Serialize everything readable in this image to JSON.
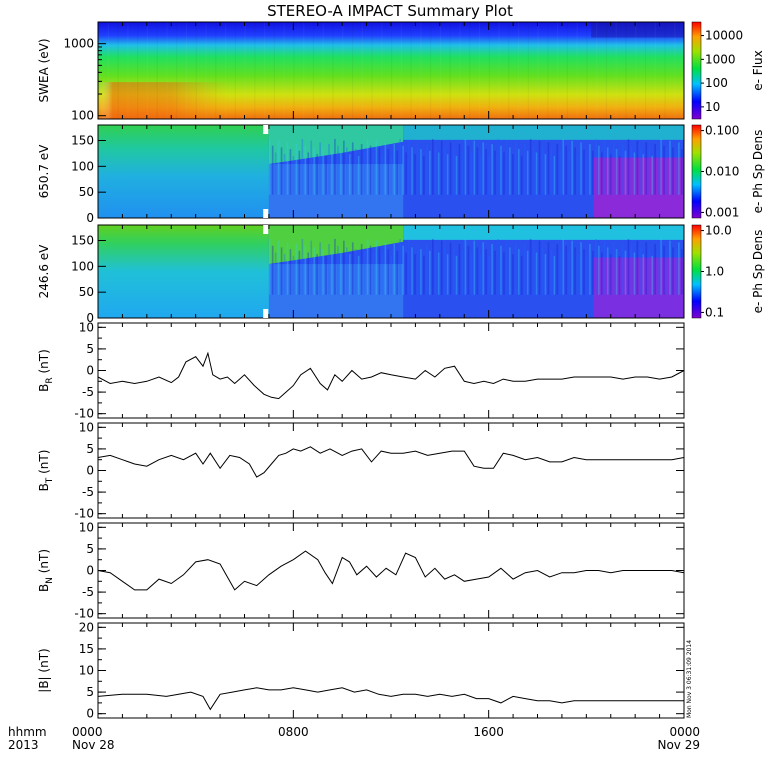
{
  "title": "STEREO-A IMPACT Summary Plot",
  "x_axis": {
    "row1_label": "hhmm",
    "row2_label": "2013",
    "tick_labels": [
      "0000",
      "0800",
      "1600",
      "0000"
    ],
    "date_labels": [
      "Nov 28",
      "Nov 29"
    ],
    "minor_ticks_per_hour": true
  },
  "stamp": "Mon Nov 3 06:31:09 2014",
  "spectrograms": [
    {
      "ylabel": "SWEA (eV)",
      "yticks": [
        "1000",
        "100"
      ],
      "colorbar_label": "e- Flux",
      "colorbar_ticks": [
        "10000",
        "1000",
        "100",
        "10"
      ]
    },
    {
      "ylabel": "650.7 eV",
      "yticks": [
        "150",
        "100",
        "50",
        "0"
      ],
      "colorbar_label": "e- Ph Sp Dens",
      "colorbar_ticks": [
        "0.100",
        "0.010",
        "0.001"
      ]
    },
    {
      "ylabel": "246.6 eV",
      "yticks": [
        "150",
        "100",
        "50",
        "0"
      ],
      "colorbar_label": "e- Ph Sp Dens",
      "colorbar_ticks": [
        "10.0",
        "1.0",
        "0.1"
      ]
    }
  ],
  "chart_data": [
    {
      "type": "heatmap",
      "title": "",
      "ylabel": "SWEA (eV)",
      "ylim": [
        90,
        2000
      ],
      "log_y": true,
      "x_hours": [
        0,
        24
      ],
      "colorbar": {
        "label": "e- Flux",
        "log": true,
        "range": [
          5,
          20000
        ]
      }
    },
    {
      "type": "heatmap",
      "ylabel": "650.7 eV",
      "ylim": [
        0,
        180
      ],
      "x_hours": [
        0,
        24
      ],
      "colorbar": {
        "label": "e- Ph Sp Dens",
        "log": true,
        "range": [
          0.001,
          0.1
        ]
      }
    },
    {
      "type": "heatmap",
      "ylabel": "246.6 eV",
      "ylim": [
        0,
        180
      ],
      "x_hours": [
        0,
        24
      ],
      "colorbar": {
        "label": "e- Ph Sp Dens",
        "log": true,
        "range": [
          0.1,
          10.0
        ]
      }
    },
    {
      "type": "line",
      "ylabel": "B_R (nT)",
      "ylim": [
        -11,
        11
      ],
      "yticks": [
        "10",
        "5",
        "0",
        "-5",
        "-10"
      ],
      "x_hours": [
        0,
        0.5,
        1,
        1.5,
        2,
        2.5,
        3,
        3.3,
        3.6,
        4,
        4.3,
        4.5,
        4.7,
        5,
        5.3,
        5.6,
        6,
        6.4,
        6.8,
        7.1,
        7.4,
        7.7,
        8,
        8.3,
        8.7,
        9.1,
        9.4,
        9.7,
        10,
        10.4,
        10.8,
        11.2,
        11.6,
        12,
        12.5,
        13,
        13.4,
        13.8,
        14.2,
        14.6,
        15,
        15.4,
        15.8,
        16.2,
        16.6,
        17,
        17.5,
        18,
        18.5,
        19,
        19.5,
        20,
        20.5,
        21,
        21.5,
        22,
        22.5,
        23,
        23.5,
        24
      ],
      "y_nT": [
        -1.5,
        -3,
        -2.5,
        -3,
        -2.5,
        -1.5,
        -2.8,
        -1.5,
        2,
        3.2,
        1,
        4,
        -1,
        -2,
        -1.5,
        -3,
        -1,
        -3.5,
        -5.5,
        -6.2,
        -6.5,
        -5,
        -3.5,
        -1,
        0.5,
        -3,
        -4.5,
        -1,
        -2.5,
        0,
        -2,
        -1.5,
        -0.5,
        -1,
        -1.5,
        -2,
        0,
        -1.5,
        0.5,
        1,
        -2.5,
        -3,
        -2.5,
        -3,
        -2,
        -2.5,
        -2.5,
        -2,
        -2,
        -2,
        -1.5,
        -1.5,
        -1.5,
        -1.5,
        -2,
        -1.5,
        -1.5,
        -2,
        -1.5,
        0
      ]
    },
    {
      "type": "line",
      "ylabel": "B_T (nT)",
      "ylim": [
        -11,
        11
      ],
      "yticks": [
        "10",
        "5",
        "0",
        "-5",
        "-10"
      ],
      "x_hours": [
        0,
        0.5,
        1,
        1.5,
        2,
        2.5,
        3,
        3.5,
        4,
        4.3,
        4.6,
        5,
        5.4,
        5.8,
        6.2,
        6.5,
        6.8,
        7.1,
        7.4,
        7.7,
        8,
        8.3,
        8.7,
        9.1,
        9.5,
        10,
        10.4,
        10.8,
        11.2,
        11.6,
        12,
        12.5,
        13,
        13.5,
        14,
        14.5,
        15,
        15.4,
        15.8,
        16.2,
        16.6,
        17,
        17.5,
        18,
        18.5,
        19,
        19.5,
        20,
        20.5,
        21,
        21.5,
        22,
        22.5,
        23,
        23.5,
        24
      ],
      "y_nT": [
        3,
        3.5,
        2.5,
        1.5,
        1,
        2.5,
        3.5,
        2.5,
        4,
        1.5,
        4,
        0.5,
        3.5,
        3,
        1.5,
        -1.5,
        -0.5,
        1.5,
        3.5,
        4,
        5,
        4.5,
        5.5,
        4,
        5,
        3.5,
        4.5,
        5,
        2,
        4.5,
        4,
        4,
        4.5,
        3.5,
        4,
        4.5,
        4.5,
        1,
        0.5,
        0.5,
        4,
        3.5,
        2.5,
        3,
        2,
        2,
        3,
        2.5,
        2.5,
        2.5,
        2.5,
        2.5,
        2.5,
        2.5,
        2.5,
        3
      ]
    },
    {
      "type": "line",
      "ylabel": "B_N (nT)",
      "ylim": [
        -11,
        11
      ],
      "yticks": [
        "10",
        "5",
        "0",
        "-5",
        "-10"
      ],
      "x_hours": [
        0,
        0.5,
        1,
        1.5,
        2,
        2.5,
        3,
        3.5,
        4,
        4.5,
        5,
        5.3,
        5.6,
        6,
        6.5,
        7,
        7.5,
        8,
        8.5,
        9,
        9.3,
        9.6,
        10,
        10.3,
        10.6,
        11,
        11.4,
        11.8,
        12.2,
        12.6,
        13,
        13.4,
        13.8,
        14.2,
        14.6,
        15,
        15.5,
        16,
        16.5,
        17,
        17.5,
        18,
        18.5,
        19,
        19.5,
        20,
        20.5,
        21,
        21.5,
        22,
        22.5,
        23,
        23.5,
        24
      ],
      "y_nT": [
        0,
        -0.5,
        -2.5,
        -4.5,
        -4.5,
        -2,
        -3,
        -1,
        2,
        2.5,
        1.5,
        -1.5,
        -4.5,
        -2.5,
        -3.5,
        -1,
        1,
        2.5,
        4.5,
        2.5,
        -0.5,
        -3,
        3,
        2,
        -1,
        1,
        -1.5,
        0.5,
        -1,
        4,
        3,
        -1.5,
        0.5,
        -2,
        -1,
        -2.5,
        -2,
        -1.5,
        0.5,
        -2,
        -0.5,
        0,
        -1.5,
        -0.5,
        -0.5,
        0,
        0,
        -0.5,
        0,
        0,
        0,
        0,
        0,
        -0.5
      ]
    },
    {
      "type": "line",
      "ylabel": "|B| (nT)",
      "ylim": [
        -1,
        21
      ],
      "yticks": [
        "20",
        "15",
        "10",
        "5",
        "0"
      ],
      "x_hours": [
        0,
        1,
        2,
        2.8,
        3.3,
        3.8,
        4.3,
        4.6,
        5,
        5.5,
        6,
        6.5,
        7,
        7.5,
        8,
        8.5,
        9,
        9.5,
        10,
        10.5,
        11,
        11.5,
        12,
        12.5,
        13,
        13.5,
        14,
        14.5,
        15,
        15.5,
        16,
        16.5,
        17,
        17.5,
        18,
        18.5,
        19,
        19.5,
        20,
        20.5,
        21,
        21.5,
        22,
        22.5,
        23,
        23.5,
        24
      ],
      "y_nT": [
        4,
        4.5,
        4.5,
        4,
        4.5,
        5,
        4,
        1,
        4.5,
        5,
        5.5,
        6,
        5.5,
        5.5,
        6,
        5.5,
        5,
        5.5,
        6,
        5,
        5.5,
        4.5,
        4,
        4.5,
        4.5,
        4,
        4.5,
        4,
        4.5,
        3.5,
        3.5,
        2.5,
        4,
        3.5,
        3,
        3,
        2.5,
        3,
        3,
        3,
        3,
        3,
        3,
        3,
        3,
        3,
        3
      ]
    }
  ]
}
